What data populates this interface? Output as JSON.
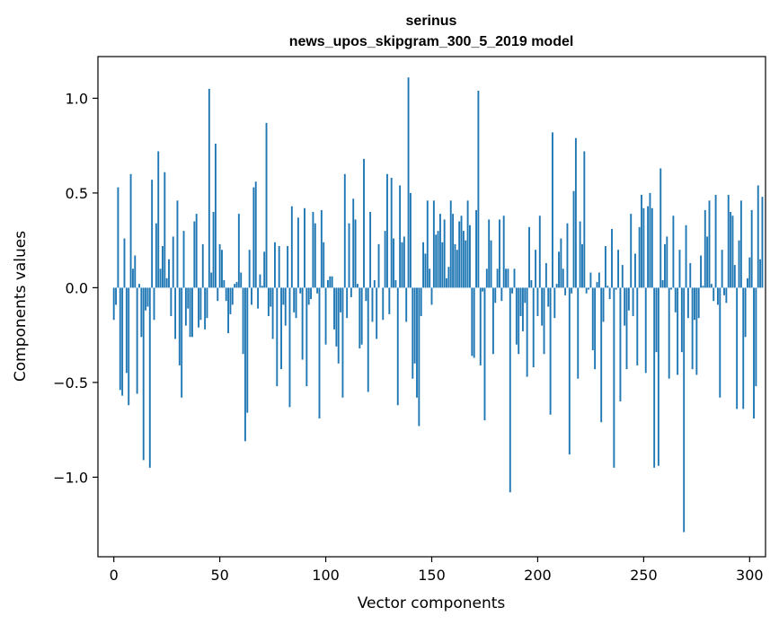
{
  "chart_data": {
    "type": "bar",
    "title": "serinus",
    "subtitle": "news_upos_skipgram_300_5_2019 model",
    "xlabel": "Vector components",
    "ylabel": "Components values",
    "xlim": [
      -7.5,
      307.5
    ],
    "ylim": [
      -1.42,
      1.22
    ],
    "x_ticks": [
      0,
      50,
      100,
      150,
      200,
      250,
      300
    ],
    "x_tick_labels": [
      "0",
      "50",
      "100",
      "150",
      "200",
      "250",
      "300"
    ],
    "y_ticks": [
      -1.0,
      -0.5,
      0.0,
      0.5,
      1.0
    ],
    "y_tick_labels": [
      "−1.0",
      "−0.5",
      "0.0",
      "0.5",
      "1.0"
    ],
    "bar_color": "#1f77b4",
    "grid": false,
    "values": [
      -0.17,
      -0.09,
      0.53,
      -0.54,
      -0.57,
      0.26,
      -0.45,
      -0.62,
      0.6,
      0.1,
      0.17,
      -0.56,
      0.02,
      -0.26,
      -0.91,
      -0.12,
      -0.1,
      -0.95,
      0.57,
      -0.17,
      0.34,
      0.72,
      0.1,
      0.22,
      0.61,
      0.05,
      0.15,
      -0.15,
      0.27,
      -0.27,
      0.46,
      -0.41,
      -0.58,
      0.3,
      -0.2,
      -0.11,
      -0.26,
      -0.26,
      0.35,
      0.39,
      -0.21,
      -0.17,
      0.23,
      -0.22,
      -0.16,
      1.05,
      0.08,
      0.4,
      0.76,
      -0.07,
      0.23,
      0.2,
      0.04,
      -0.07,
      -0.24,
      -0.14,
      -0.09,
      0.02,
      0.03,
      0.39,
      0.08,
      -0.35,
      -0.81,
      -0.66,
      0.2,
      -0.09,
      0.53,
      0.56,
      -0.11,
      0.07,
      0.01,
      0.19,
      0.87,
      -0.15,
      -0.1,
      -0.27,
      0.24,
      -0.52,
      0.22,
      -0.43,
      -0.09,
      -0.2,
      0.22,
      -0.63,
      0.43,
      -0.13,
      -0.16,
      0.37,
      -0.03,
      -0.38,
      0.42,
      -0.52,
      -0.09,
      -0.06,
      0.4,
      0.34,
      -0.03,
      -0.69,
      0.41,
      0.24,
      -0.3,
      0.04,
      0.06,
      0.06,
      -0.22,
      -0.31,
      -0.4,
      -0.13,
      -0.58,
      0.6,
      -0.16,
      0.34,
      -0.05,
      0.47,
      0.36,
      0.02,
      -0.32,
      -0.3,
      0.68,
      -0.07,
      -0.55,
      0.4,
      -0.18,
      0.04,
      -0.27,
      0.23,
      0.0,
      -0.17,
      0.3,
      0.6,
      -0.14,
      0.58,
      0.26,
      0.04,
      -0.62,
      0.54,
      0.24,
      0.27,
      -0.18,
      1.11,
      0.5,
      -0.48,
      -0.4,
      -0.58,
      -0.73,
      -0.15,
      0.24,
      0.18,
      0.46,
      0.1,
      -0.09,
      0.46,
      0.28,
      0.3,
      0.39,
      0.24,
      0.36,
      0.05,
      0.11,
      0.46,
      0.39,
      0.23,
      0.2,
      0.35,
      0.38,
      0.3,
      0.25,
      0.46,
      0.33,
      -0.36,
      -0.37,
      0.41,
      1.04,
      -0.41,
      -0.02,
      -0.7,
      0.1,
      0.36,
      0.25,
      -0.35,
      -0.08,
      0.1,
      0.36,
      -0.07,
      0.38,
      0.1,
      0.1,
      -1.08,
      -0.03,
      0.1,
      -0.3,
      -0.35,
      -0.15,
      -0.23,
      -0.08,
      -0.47,
      0.32,
      0.04,
      -0.42,
      0.2,
      -0.15,
      0.38,
      -0.2,
      -0.35,
      0.13,
      -0.1,
      -0.67,
      0.82,
      -0.16,
      0.02,
      0.19,
      0.26,
      0.1,
      -0.04,
      0.34,
      -0.88,
      -0.03,
      0.51,
      0.79,
      -0.48,
      0.35,
      0.23,
      0.72,
      -0.03,
      -0.01,
      0.08,
      -0.33,
      -0.43,
      0.03,
      0.08,
      -0.71,
      -0.18,
      0.22,
      0.01,
      -0.06,
      0.31,
      -0.95,
      -0.01,
      0.2,
      -0.6,
      0.12,
      -0.2,
      -0.43,
      -0.12,
      0.39,
      -0.15,
      0.18,
      -0.41,
      0.32,
      0.49,
      0.42,
      -0.45,
      0.43,
      0.5,
      0.42,
      -0.95,
      -0.34,
      -0.94,
      0.63,
      0.04,
      0.23,
      0.27,
      -0.48,
      -0.01,
      0.38,
      -0.13,
      -0.46,
      0.2,
      -0.34,
      -1.29,
      0.33,
      -0.16,
      0.13,
      -0.43,
      -0.17,
      -0.46,
      -0.16,
      0.17,
      0.01,
      0.41,
      0.27,
      0.46,
      0.02,
      -0.07,
      0.49,
      -0.09,
      -0.58,
      0.2,
      -0.04,
      -0.08,
      0.49,
      0.4,
      0.38,
      0.12,
      -0.64,
      0.25,
      0.46,
      -0.64,
      -0.26,
      0.05,
      0.16,
      0.41,
      -0.69,
      -0.52,
      0.54,
      0.15,
      0.48
    ]
  }
}
